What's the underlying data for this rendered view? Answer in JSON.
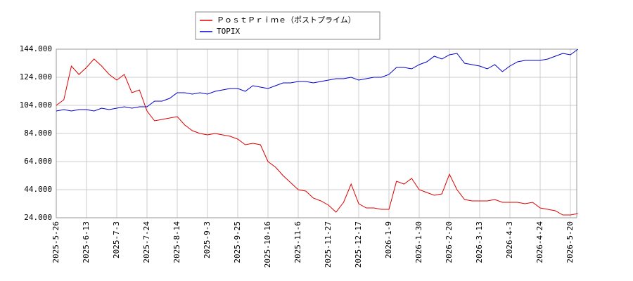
{
  "chart_data": {
    "type": "line",
    "categories": [
      "2025-5-26",
      null,
      null,
      null,
      "2025-6-13",
      null,
      null,
      null,
      "2025-7-3",
      null,
      null,
      null,
      "2025-7-24",
      null,
      null,
      null,
      "2025-8-14",
      null,
      null,
      null,
      "2025-9-3",
      null,
      null,
      null,
      "2025-9-25",
      null,
      null,
      null,
      "2025-10-16",
      null,
      null,
      null,
      "2025-11-6",
      null,
      null,
      null,
      "2025-11-27",
      null,
      null,
      null,
      "2025-12-17",
      null,
      null,
      null,
      "2026-1-9",
      null,
      null,
      null,
      "2026-1-30",
      null,
      null,
      null,
      "2026-2-20",
      null,
      null,
      null,
      "2026-3-13",
      null,
      null,
      null,
      "2026-4-3",
      null,
      null,
      null,
      "2026-4-24",
      null,
      null,
      null,
      "2026-5-20",
      null
    ],
    "series": [
      {
        "name": "ＰｏｓｔＰｒｉｍｅ（ポストプライム）",
        "color": "#dd0000",
        "values": [
          104,
          108,
          132,
          126,
          131,
          137,
          132,
          126,
          122,
          126,
          113,
          115,
          100,
          93,
          94,
          95,
          96,
          90,
          86,
          84,
          83,
          84,
          83,
          82,
          80,
          76,
          77,
          76,
          64,
          60,
          54,
          49,
          44,
          43,
          38,
          36,
          33,
          28,
          35,
          48,
          34,
          31,
          31,
          30,
          30,
          50,
          48,
          52,
          44,
          42,
          40,
          41,
          55,
          44,
          37,
          36,
          36,
          36,
          37,
          35,
          35,
          35,
          34,
          35,
          31,
          30,
          29,
          26,
          26,
          27
        ]
      },
      {
        "name": "TOPIX",
        "color": "#0000cc",
        "values": [
          100,
          101,
          100,
          101,
          101,
          100,
          102,
          101,
          102,
          103,
          102,
          103,
          103,
          107,
          107,
          109,
          113,
          113,
          112,
          113,
          112,
          114,
          115,
          116,
          116,
          114,
          118,
          117,
          116,
          118,
          120,
          120,
          121,
          121,
          120,
          121,
          122,
          123,
          123,
          124,
          122,
          123,
          124,
          124,
          126,
          131,
          131,
          130,
          133,
          135,
          139,
          137,
          140,
          141,
          134,
          133,
          132,
          130,
          133,
          128,
          132,
          135,
          136,
          136,
          136,
          137,
          139,
          141,
          140,
          144
        ]
      }
    ],
    "ylim": [
      24,
      144
    ],
    "yticks": [
      {
        "value": 24,
        "label": "24.000"
      },
      {
        "value": 44,
        "label": "44.000"
      },
      {
        "value": 64,
        "label": "64.000"
      },
      {
        "value": 84,
        "label": "84.000"
      },
      {
        "value": 104,
        "label": "104.000"
      },
      {
        "value": 124,
        "label": "124.000"
      },
      {
        "value": 144,
        "label": "144.000"
      }
    ],
    "grid": true
  }
}
